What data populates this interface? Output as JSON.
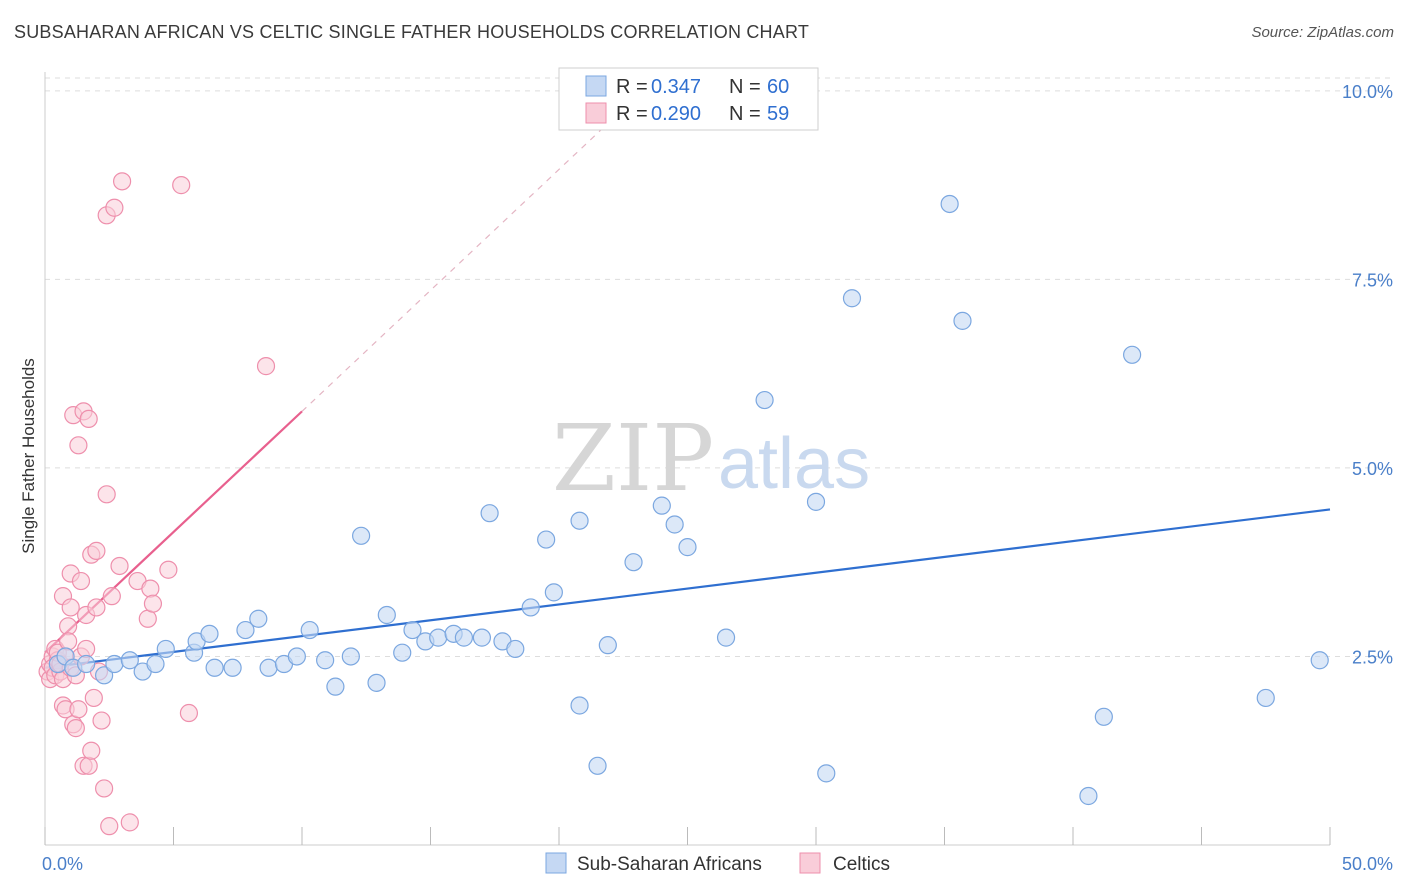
{
  "title": "SUBSAHARAN AFRICAN VS CELTIC SINGLE FATHER HOUSEHOLDS CORRELATION CHART",
  "source": "Source: ZipAtlas.com",
  "colors": {
    "blue": "#7ba7e0",
    "blue_fill": "#c5d8f3",
    "blue_line": "#2f6fd0",
    "pink": "#ee8fac",
    "pink_fill": "#f9cdd9",
    "pink_line": "#e8608e",
    "grid": "#dddddd",
    "axis_text": "#4a7fc9"
  },
  "watermark": {
    "zip": "ZIP",
    "atlas": "atlas"
  },
  "legend": {
    "rows": [
      {
        "r_label": "R =",
        "r_value": "0.347",
        "n_label": "N =",
        "n_value": "60"
      },
      {
        "r_label": "R =",
        "r_value": "0.290",
        "n_label": "N =",
        "n_value": "59"
      }
    ]
  },
  "bottom_legend": [
    "Sub-Saharan Africans",
    "Celtics"
  ],
  "chart_data": {
    "type": "scatter",
    "title": "SUBSAHARAN AFRICAN VS CELTIC SINGLE FATHER HOUSEHOLDS CORRELATION CHART",
    "xlabel": "",
    "ylabel": "Single Father Households",
    "xlim": [
      0,
      50
    ],
    "ylim": [
      0,
      10.25
    ],
    "x_tick_labels": [
      "0.0%",
      "50.0%"
    ],
    "y_ticks": [
      2.5,
      5.0,
      7.5,
      10.0
    ],
    "y_tick_labels": [
      "2.5%",
      "5.0%",
      "7.5%",
      "10.0%"
    ],
    "series": [
      {
        "name": "Sub-Saharan Africans",
        "r": 0.347,
        "n": 60,
        "trend": {
          "x": [
            0,
            50
          ],
          "y": [
            2.35,
            4.45
          ]
        },
        "points": [
          [
            0.5,
            2.4
          ],
          [
            0.8,
            2.5
          ],
          [
            1.1,
            2.35
          ],
          [
            1.6,
            2.4
          ],
          [
            2.3,
            2.25
          ],
          [
            2.7,
            2.4
          ],
          [
            3.3,
            2.45
          ],
          [
            3.8,
            2.3
          ],
          [
            4.3,
            2.4
          ],
          [
            4.7,
            2.6
          ],
          [
            5.8,
            2.55
          ],
          [
            5.9,
            2.7
          ],
          [
            6.4,
            2.8
          ],
          [
            6.6,
            2.35
          ],
          [
            7.3,
            2.35
          ],
          [
            7.8,
            2.85
          ],
          [
            8.3,
            3.0
          ],
          [
            8.7,
            2.35
          ],
          [
            9.3,
            2.4
          ],
          [
            9.8,
            2.5
          ],
          [
            10.3,
            2.85
          ],
          [
            10.9,
            2.45
          ],
          [
            11.3,
            2.1
          ],
          [
            11.9,
            2.5
          ],
          [
            12.3,
            4.1
          ],
          [
            12.9,
            2.15
          ],
          [
            13.3,
            3.05
          ],
          [
            13.9,
            2.55
          ],
          [
            14.3,
            2.85
          ],
          [
            14.8,
            2.7
          ],
          [
            15.3,
            2.75
          ],
          [
            15.9,
            2.8
          ],
          [
            16.3,
            2.75
          ],
          [
            17.0,
            2.75
          ],
          [
            17.3,
            4.4
          ],
          [
            17.8,
            2.7
          ],
          [
            18.3,
            2.6
          ],
          [
            18.9,
            3.15
          ],
          [
            19.5,
            4.05
          ],
          [
            19.8,
            3.35
          ],
          [
            20.8,
            4.3
          ],
          [
            20.8,
            1.85
          ],
          [
            21.5,
            1.05
          ],
          [
            21.9,
            2.65
          ],
          [
            22.9,
            3.75
          ],
          [
            24.0,
            4.5
          ],
          [
            24.5,
            4.25
          ],
          [
            25.0,
            3.95
          ],
          [
            26.5,
            2.75
          ],
          [
            28.0,
            5.9
          ],
          [
            30.0,
            4.55
          ],
          [
            30.4,
            0.95
          ],
          [
            31.4,
            7.25
          ],
          [
            35.2,
            8.5
          ],
          [
            35.7,
            6.95
          ],
          [
            40.6,
            0.65
          ],
          [
            41.2,
            1.7
          ],
          [
            42.3,
            6.5
          ],
          [
            47.5,
            1.95
          ],
          [
            49.6,
            2.45
          ]
        ]
      },
      {
        "name": "Celtics",
        "r": 0.29,
        "n": 59,
        "trend": {
          "x": [
            0,
            10.0
          ],
          "y": [
            2.55,
            5.75
          ]
        },
        "trend_ext": {
          "x": [
            10.0,
            22.0
          ],
          "y": [
            5.75,
            9.6
          ]
        },
        "points": [
          [
            0.1,
            2.3
          ],
          [
            0.2,
            2.4
          ],
          [
            0.2,
            2.2
          ],
          [
            0.3,
            2.5
          ],
          [
            0.3,
            2.35
          ],
          [
            0.4,
            2.6
          ],
          [
            0.4,
            2.25
          ],
          [
            0.5,
            2.45
          ],
          [
            0.5,
            2.55
          ],
          [
            0.6,
            2.3
          ],
          [
            0.6,
            2.4
          ],
          [
            0.7,
            2.2
          ],
          [
            0.7,
            3.3
          ],
          [
            0.7,
            1.85
          ],
          [
            0.8,
            2.5
          ],
          [
            0.8,
            1.8
          ],
          [
            0.9,
            2.9
          ],
          [
            0.9,
            2.7
          ],
          [
            1.0,
            3.15
          ],
          [
            1.0,
            2.35
          ],
          [
            1.0,
            3.6
          ],
          [
            1.1,
            1.6
          ],
          [
            1.1,
            5.7
          ],
          [
            1.2,
            2.25
          ],
          [
            1.2,
            1.55
          ],
          [
            1.3,
            5.3
          ],
          [
            1.3,
            1.8
          ],
          [
            1.4,
            3.5
          ],
          [
            1.4,
            2.5
          ],
          [
            1.5,
            1.05
          ],
          [
            1.5,
            5.75
          ],
          [
            1.6,
            3.05
          ],
          [
            1.6,
            2.6
          ],
          [
            1.7,
            5.65
          ],
          [
            1.7,
            1.05
          ],
          [
            1.8,
            1.25
          ],
          [
            1.8,
            3.85
          ],
          [
            1.9,
            1.95
          ],
          [
            2.0,
            3.15
          ],
          [
            2.0,
            3.9
          ],
          [
            2.1,
            2.3
          ],
          [
            2.2,
            1.65
          ],
          [
            2.3,
            0.75
          ],
          [
            2.4,
            4.65
          ],
          [
            2.4,
            8.35
          ],
          [
            2.5,
            0.25
          ],
          [
            2.6,
            3.3
          ],
          [
            2.7,
            8.45
          ],
          [
            2.9,
            3.7
          ],
          [
            3.0,
            8.8
          ],
          [
            3.3,
            0.3
          ],
          [
            3.6,
            3.5
          ],
          [
            4.0,
            3.0
          ],
          [
            4.1,
            3.4
          ],
          [
            4.2,
            3.2
          ],
          [
            4.8,
            3.65
          ],
          [
            5.3,
            8.75
          ],
          [
            5.6,
            1.75
          ],
          [
            8.6,
            6.35
          ]
        ]
      }
    ]
  }
}
